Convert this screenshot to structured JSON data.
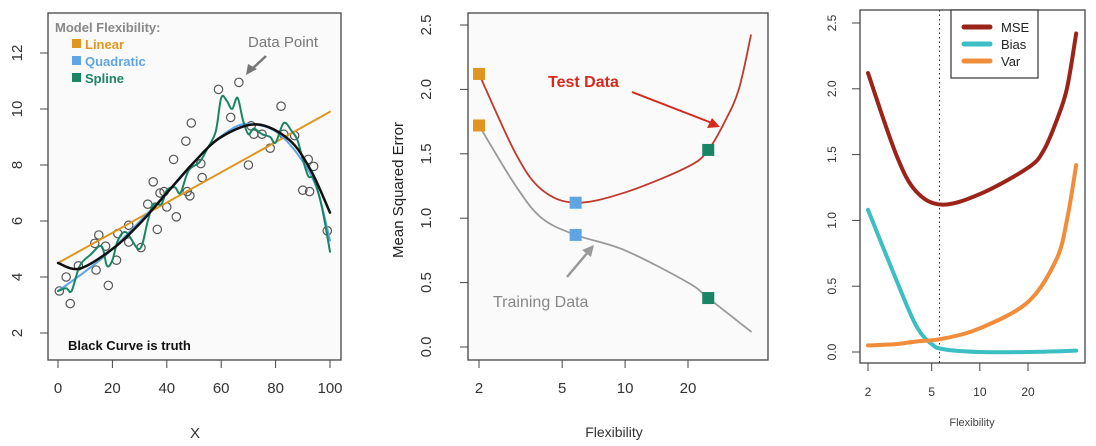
{
  "chart_data": [
    {
      "type": "scatter",
      "title": "",
      "xlabel": "X",
      "ylabel": "",
      "xlim": [
        0,
        100
      ],
      "ylim": [
        1.5,
        13.5
      ],
      "xticks": [
        "0",
        "20",
        "40",
        "60",
        "80",
        "100"
      ],
      "yticks": [
        "2",
        "4",
        "6",
        "8",
        "10",
        "12"
      ],
      "legend_title": "Model Flexibility:",
      "legend": [
        {
          "label": "Linear",
          "color": "#e0961e"
        },
        {
          "label": "Quadratic",
          "color": "#5fa5e3"
        },
        {
          "label": "Spline",
          "color": "#1a8565"
        }
      ],
      "annotations": {
        "data_point": "Data Point",
        "truth_note": "Black Curve is truth"
      },
      "points": [
        [
          0.5,
          3.5
        ],
        [
          3,
          4.0
        ],
        [
          4.5,
          3.05
        ],
        [
          7.5,
          4.4
        ],
        [
          13.5,
          5.2
        ],
        [
          14,
          4.25
        ],
        [
          15,
          5.5
        ],
        [
          17.5,
          5.1
        ],
        [
          18.5,
          3.7
        ],
        [
          21.5,
          4.6
        ],
        [
          22,
          5.55
        ],
        [
          26,
          5.85
        ],
        [
          26,
          5.25
        ],
        [
          30.5,
          5.05
        ],
        [
          33,
          6.6
        ],
        [
          35,
          7.4
        ],
        [
          36.5,
          5.7
        ],
        [
          37.5,
          7.0
        ],
        [
          39,
          7.05
        ],
        [
          40,
          6.5
        ],
        [
          42.5,
          8.2
        ],
        [
          43.5,
          6.15
        ],
        [
          47,
          8.85
        ],
        [
          47.5,
          7.05
        ],
        [
          48.5,
          6.9
        ],
        [
          49,
          9.5
        ],
        [
          52.5,
          8.05
        ],
        [
          53,
          7.55
        ],
        [
          59,
          10.7
        ],
        [
          63.5,
          9.7
        ],
        [
          66.5,
          10.95
        ],
        [
          70,
          8.0
        ],
        [
          71,
          9.4
        ],
        [
          72,
          9.1
        ],
        [
          75,
          9.1
        ],
        [
          78,
          8.6
        ],
        [
          82,
          10.1
        ],
        [
          83,
          9.1
        ],
        [
          87,
          9.05
        ],
        [
          90,
          7.1
        ],
        [
          92,
          8.2
        ],
        [
          92.5,
          7.05
        ],
        [
          94,
          7.95
        ],
        [
          99,
          5.65
        ]
      ],
      "series": [
        {
          "name": "Linear",
          "color": "#e0961e",
          "width": 2,
          "values": [
            [
              0,
              4.5
            ],
            [
              100,
              9.9
            ]
          ]
        },
        {
          "name": "Quadratic",
          "color": "#5fa5e3",
          "width": 2,
          "values": [
            [
              0,
              3.5
            ],
            [
              10,
              4.2
            ],
            [
              20,
              5.0
            ],
            [
              40,
              7.0
            ],
            [
              55,
              8.6
            ],
            [
              65,
              9.35
            ],
            [
              72,
              9.45
            ],
            [
              80,
              9.2
            ],
            [
              88,
              8.4
            ],
            [
              95,
              7.2
            ],
            [
              100,
              5.3
            ]
          ]
        },
        {
          "name": "Spline",
          "color": "#1a8565",
          "width": 2,
          "values": [
            [
              0,
              3.5
            ],
            [
              3,
              3.6
            ],
            [
              5,
              3.5
            ],
            [
              8,
              4.4
            ],
            [
              12,
              4.8
            ],
            [
              16,
              5.1
            ],
            [
              18,
              4.4
            ],
            [
              20,
              4.6
            ],
            [
              22,
              5.3
            ],
            [
              25,
              5.6
            ],
            [
              30,
              5.0
            ],
            [
              33,
              6.0
            ],
            [
              35,
              6.6
            ],
            [
              38,
              6.6
            ],
            [
              40,
              7.1
            ],
            [
              43,
              7.2
            ],
            [
              45,
              7.0
            ],
            [
              48,
              7.8
            ],
            [
              52,
              8.1
            ],
            [
              55,
              8.6
            ],
            [
              58,
              9.2
            ],
            [
              60,
              10.4
            ],
            [
              62,
              10.3
            ],
            [
              64,
              10.0
            ],
            [
              66,
              10.4
            ],
            [
              68,
              9.6
            ],
            [
              70,
              9.1
            ],
            [
              72,
              9.3
            ],
            [
              75,
              9.1
            ],
            [
              78,
              9.0
            ],
            [
              80,
              8.8
            ],
            [
              83,
              9.5
            ],
            [
              86,
              9.2
            ],
            [
              88,
              8.9
            ],
            [
              90,
              8.2
            ],
            [
              92,
              7.6
            ],
            [
              94,
              7.5
            ],
            [
              97,
              6.5
            ],
            [
              100,
              4.9
            ]
          ]
        },
        {
          "name": "Truth",
          "color": "#111111",
          "width": 2.5,
          "values": [
            [
              0,
              4.5
            ],
            [
              8,
              4.3
            ],
            [
              20,
              5.0
            ],
            [
              30,
              5.9
            ],
            [
              40,
              7.0
            ],
            [
              50,
              8.1
            ],
            [
              60,
              9.0
            ],
            [
              73,
              9.45
            ],
            [
              85,
              8.9
            ],
            [
              93,
              7.8
            ],
            [
              100,
              6.3
            ]
          ]
        }
      ]
    },
    {
      "type": "line",
      "xscale": "log",
      "xlabel": "Flexibility",
      "ylabel": "Mean Squared Error",
      "xlim": [
        1.9,
        44
      ],
      "ylim": [
        -0.1,
        2.6
      ],
      "xticks": [
        "2",
        "5",
        "10",
        "20"
      ],
      "yticks": [
        "0.0",
        "0.5",
        "1.0",
        "1.5",
        "2.0",
        "2.5"
      ],
      "annotations": {
        "test": "Test Data",
        "train": "Training Data"
      },
      "series": [
        {
          "name": "Test Data",
          "color": "#c0392b",
          "values": [
            [
              2,
              2.12
            ],
            [
              3,
              1.5
            ],
            [
              4,
              1.22
            ],
            [
              5.8,
              1.12
            ],
            [
              10,
              1.2
            ],
            [
              20,
              1.4
            ],
            [
              25,
              1.53
            ],
            [
              30,
              1.75
            ],
            [
              35,
              2.0
            ],
            [
              40,
              2.42
            ]
          ]
        },
        {
          "name": "Training Data",
          "color": "#999999",
          "values": [
            [
              2,
              1.72
            ],
            [
              3,
              1.25
            ],
            [
              4,
              1.0
            ],
            [
              5.8,
              0.87
            ],
            [
              10,
              0.75
            ],
            [
              20,
              0.5
            ],
            [
              25,
              0.38
            ],
            [
              40,
              0.12
            ]
          ]
        }
      ],
      "markers": [
        {
          "x": 2,
          "y": 2.12,
          "color": "#e0961e"
        },
        {
          "x": 2,
          "y": 1.72,
          "color": "#e0961e"
        },
        {
          "x": 5.8,
          "y": 1.12,
          "color": "#5fa5e3"
        },
        {
          "x": 5.8,
          "y": 0.87,
          "color": "#5fa5e3"
        },
        {
          "x": 25,
          "y": 1.53,
          "color": "#1a8565"
        },
        {
          "x": 25,
          "y": 0.38,
          "color": "#1a8565"
        }
      ]
    },
    {
      "type": "line",
      "xscale": "log",
      "xlabel": "Flexibility",
      "ylabel": "",
      "xlim": [
        1.85,
        48
      ],
      "ylim": [
        -0.1,
        2.65
      ],
      "xticks": [
        "2",
        "5",
        "10",
        "20"
      ],
      "yticks": [
        "0.0",
        "0.5",
        "1.0",
        "1.5",
        "2.0",
        "2.5"
      ],
      "vline": 5.6,
      "legend": [
        {
          "label": "MSE",
          "color": "#9b2318"
        },
        {
          "label": "Bias",
          "color": "#3bbfc4"
        },
        {
          "label": "Var",
          "color": "#f08c3a"
        }
      ],
      "series": [
        {
          "name": "MSE",
          "color": "#9b2318",
          "values": [
            [
              2,
              2.12
            ],
            [
              3,
              1.5
            ],
            [
              4,
              1.22
            ],
            [
              5.8,
              1.12
            ],
            [
              10,
              1.2
            ],
            [
              20,
              1.4
            ],
            [
              25,
              1.53
            ],
            [
              30,
              1.75
            ],
            [
              35,
              2.0
            ],
            [
              40,
              2.42
            ]
          ]
        },
        {
          "name": "Bias",
          "color": "#3bbfc4",
          "values": [
            [
              2,
              1.08
            ],
            [
              3,
              0.55
            ],
            [
              4,
              0.2
            ],
            [
              5,
              0.06
            ],
            [
              6,
              0.02
            ],
            [
              10,
              0.0
            ],
            [
              20,
              0.0
            ],
            [
              40,
              0.01
            ]
          ]
        },
        {
          "name": "Var",
          "color": "#f08c3a",
          "values": [
            [
              2,
              0.05
            ],
            [
              3,
              0.06
            ],
            [
              4,
              0.08
            ],
            [
              5.8,
              0.1
            ],
            [
              10,
              0.18
            ],
            [
              20,
              0.38
            ],
            [
              30,
              0.7
            ],
            [
              35,
              1.0
            ],
            [
              40,
              1.42
            ]
          ]
        }
      ]
    }
  ]
}
